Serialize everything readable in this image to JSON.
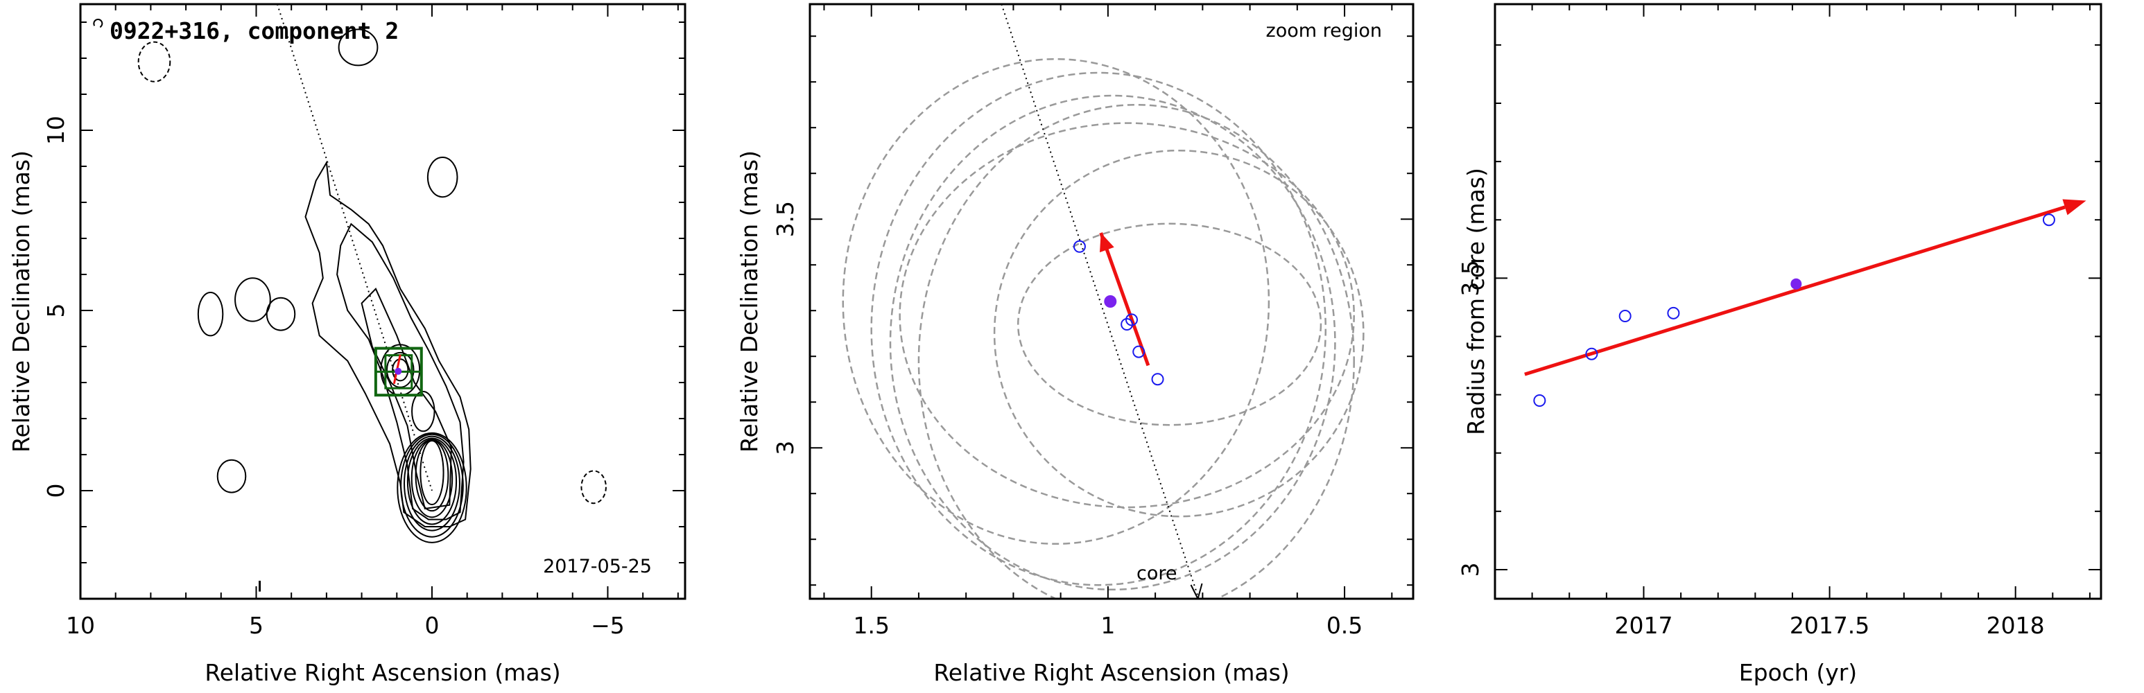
{
  "colors": {
    "fit_line": "#ee1111",
    "epoch_point": "#1a1aee",
    "current_epoch": "#7a22ee",
    "zoom_box": "#116611",
    "beam_circle": "#999999",
    "contour": "#000000"
  },
  "chart_data": [
    {
      "type": "scatter",
      "panel": "contour-map",
      "title": "0922+316, component 2",
      "xlabel": "Relative Right Ascension (mas)",
      "ylabel": "Relative Declination (mas)",
      "xlim": [
        10,
        -7.2
      ],
      "ylim": [
        -3,
        13.5
      ],
      "xticks": [
        10,
        5,
        0,
        -5
      ],
      "xtick_labels": [
        "10",
        "5",
        "0",
        "−5"
      ],
      "yticks": [
        0,
        5,
        10
      ],
      "ytick_labels": [
        "0",
        "5",
        "10"
      ],
      "date_label": "2017-05-25",
      "trajectory": [
        [
          4.4,
          13.5
        ],
        [
          0,
          0
        ]
      ],
      "zoom_box": {
        "x": [
          1.6,
          0.3
        ],
        "y": [
          2.65,
          3.95
        ]
      },
      "components": [
        {
          "name": "core",
          "x": 0.0,
          "y": 0.0
        },
        {
          "name": "component 2",
          "x": 1.0,
          "y": 3.35
        }
      ]
    },
    {
      "type": "scatter",
      "panel": "zoom-region",
      "annotation": "zoom region",
      "core_label": "core",
      "xlabel": "Relative Right Ascension (mas)",
      "ylabel": "Relative Declination (mas)",
      "xlim": [
        1.63,
        0.355
      ],
      "ylim": [
        2.67,
        3.97
      ],
      "xticks": [
        1.5,
        1.0,
        0.5
      ],
      "xtick_labels": [
        "1.5",
        "1",
        "0.5"
      ],
      "yticks": [
        3.0,
        3.5
      ],
      "ytick_labels": [
        "3",
        "3.5"
      ],
      "epochs_ra": [
        1.06,
        0.96,
        0.95,
        0.935,
        0.895,
        0.995
      ],
      "epochs_dec": [
        3.44,
        3.27,
        3.28,
        3.21,
        3.15,
        3.32
      ],
      "current_epoch": {
        "ra": 0.995,
        "dec": 3.32
      },
      "beams": [
        {
          "ra": 1.11,
          "dec": 3.32,
          "a": 0.45,
          "b": 0.53
        },
        {
          "ra": 1.02,
          "dec": 3.26,
          "a": 0.48,
          "b": 0.56
        },
        {
          "ra": 0.99,
          "dec": 3.23,
          "a": 0.47,
          "b": 0.54
        },
        {
          "ra": 0.94,
          "dec": 3.19,
          "a": 0.46,
          "b": 0.56
        },
        {
          "ra": 0.96,
          "dec": 3.29,
          "a": 0.48,
          "b": 0.42
        },
        {
          "ra": 0.87,
          "dec": 3.27,
          "a": 0.32,
          "b": 0.22
        },
        {
          "ra": 0.85,
          "dec": 3.25,
          "a": 0.39,
          "b": 0.4
        }
      ],
      "motion_arrow": {
        "from": [
          0.915,
          3.18
        ],
        "to": [
          1.015,
          3.47
        ]
      },
      "trajectory": [
        [
          1.225,
          3.97
        ],
        [
          0.81,
          2.67
        ]
      ]
    },
    {
      "type": "scatter",
      "panel": "radius-vs-epoch",
      "xlabel": "Epoch (yr)",
      "ylabel": "Radius from core (mas)",
      "xlim": [
        2016.6,
        2018.23
      ],
      "ylim": [
        2.95,
        3.97
      ],
      "xticks": [
        2017,
        2017.5,
        2018
      ],
      "xtick_labels": [
        "2017",
        "2017.5",
        "2018"
      ],
      "yticks": [
        3.0,
        3.5
      ],
      "ytick_labels": [
        "3",
        "3.5"
      ],
      "x": [
        2016.72,
        2016.86,
        2016.95,
        2017.08,
        2017.41,
        2018.09
      ],
      "y": [
        3.29,
        3.37,
        3.435,
        3.44,
        3.49,
        3.6
      ],
      "filled_index": 4,
      "fit_line": {
        "x": [
          2016.68,
          2018.19
        ],
        "y": [
          3.335,
          3.633
        ]
      }
    }
  ]
}
